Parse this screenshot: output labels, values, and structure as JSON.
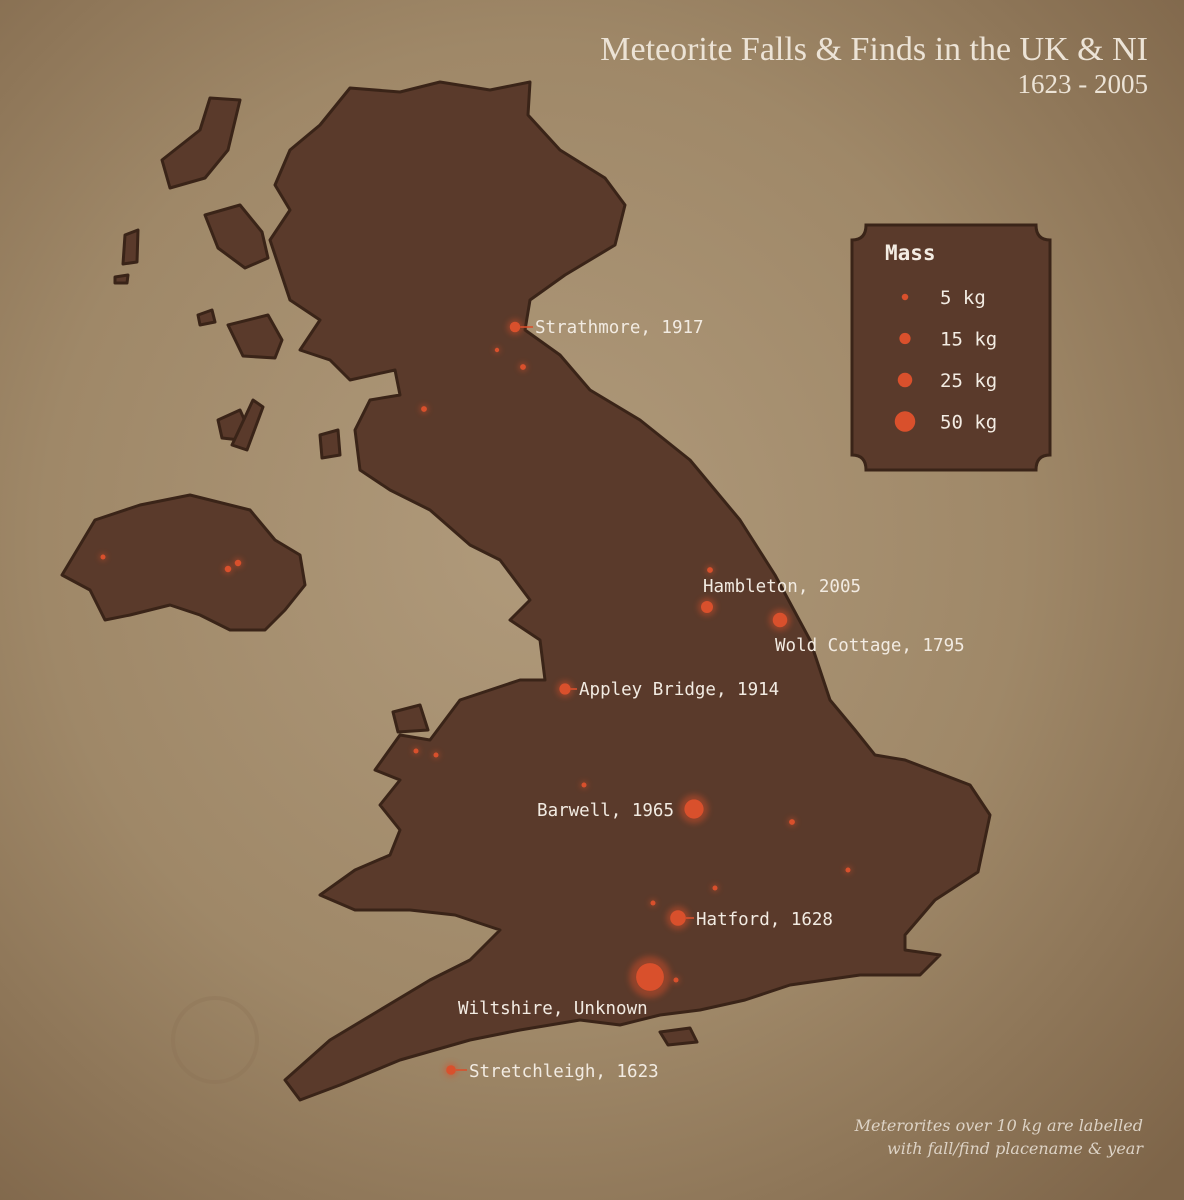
{
  "header": {
    "title": "Meteorite Falls & Finds in the UK & NI",
    "subtitle": "1623 - 2005"
  },
  "legend": {
    "title": "Mass",
    "items": [
      {
        "label": "5 kg",
        "mass_kg": 5
      },
      {
        "label": "15 kg",
        "mass_kg": 15
      },
      {
        "label": "25 kg",
        "mass_kg": 25
      },
      {
        "label": "50 kg",
        "mass_kg": 50
      }
    ]
  },
  "note": {
    "line1": "Meterorites over 10 kg are labelled",
    "line2": "with fall/find placename & year"
  },
  "colors": {
    "background": "#9c8566",
    "land": "#5a3a2b",
    "marker": "#d9502c"
  },
  "meteorites": [
    {
      "name": "Strathmore",
      "year": "1917",
      "label": "Strathmore, 1917",
      "mass_kg": 13
    },
    {
      "name": "Hambleton",
      "year": "2005",
      "label": "Hambleton, 2005",
      "mass_kg": 17
    },
    {
      "name": "Wold Cottage",
      "year": "1795",
      "label": "Wold Cottage, 1795",
      "mass_kg": 25
    },
    {
      "name": "Appley Bridge",
      "year": "1914",
      "label": "Appley Bridge, 1914",
      "mass_kg": 15
    },
    {
      "name": "Barwell",
      "year": "1965",
      "label": "Barwell, 1965",
      "mass_kg": 44
    },
    {
      "name": "Hatford",
      "year": "1628",
      "label": "Hatford, 1628",
      "mass_kg": 29
    },
    {
      "name": "Wiltshire",
      "year": "Unknown",
      "label": "Wiltshire, Unknown",
      "mass_kg": 92
    },
    {
      "name": "Stretchleigh",
      "year": "1623",
      "label": "Stretchleigh, 1623",
      "mass_kg": 11
    },
    {
      "name": "",
      "year": "",
      "label": "",
      "mass_kg": 4
    },
    {
      "name": "",
      "year": "",
      "label": "",
      "mass_kg": 2
    },
    {
      "name": "",
      "year": "",
      "label": "",
      "mass_kg": 4
    },
    {
      "name": "",
      "year": "",
      "label": "",
      "mass_kg": 4
    },
    {
      "name": "",
      "year": "",
      "label": "",
      "mass_kg": 5
    },
    {
      "name": "",
      "year": "",
      "label": "",
      "mass_kg": 5
    },
    {
      "name": "",
      "year": "",
      "label": "",
      "mass_kg": 3
    },
    {
      "name": "",
      "year": "",
      "label": "",
      "mass_kg": 3
    },
    {
      "name": "",
      "year": "",
      "label": "",
      "mass_kg": 3
    },
    {
      "name": "",
      "year": "",
      "label": "",
      "mass_kg": 3
    },
    {
      "name": "",
      "year": "",
      "label": "",
      "mass_kg": 4
    },
    {
      "name": "",
      "year": "",
      "label": "",
      "mass_kg": 3
    },
    {
      "name": "",
      "year": "",
      "label": "",
      "mass_kg": 3
    },
    {
      "name": "",
      "year": "",
      "label": "",
      "mass_kg": 3
    },
    {
      "name": "",
      "year": "",
      "label": "",
      "mass_kg": 3
    },
    {
      "name": "",
      "year": "",
      "label": "",
      "mass_kg": 3
    },
    {
      "name": "",
      "year": "",
      "label": "",
      "mass_kg": 3
    }
  ]
}
